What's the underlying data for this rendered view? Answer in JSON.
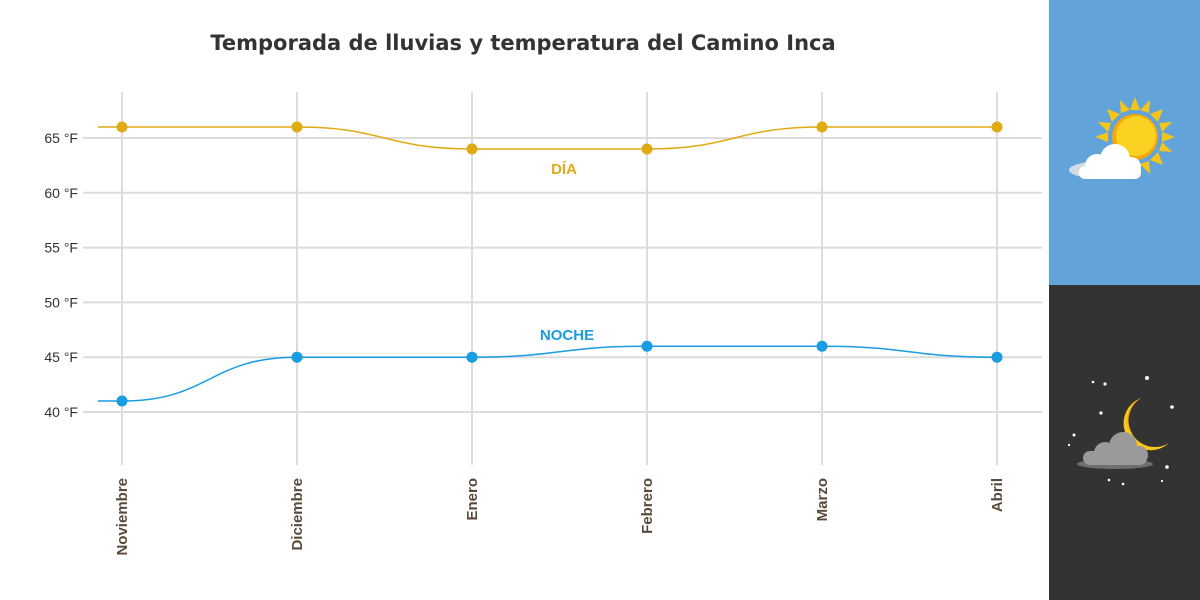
{
  "chart_data": {
    "type": "line",
    "title": "Temporada de lluvias y temperatura del Camino Inca",
    "categories": [
      "Noviembre",
      "Diciembre",
      "Enero",
      "Febrero",
      "Marzo",
      "Abril"
    ],
    "yticks": [
      "40 °F",
      "45 °F",
      "50 °F",
      "55 °F",
      "60 °F",
      "65 °F"
    ],
    "ylim": [
      35,
      69
    ],
    "grid": true,
    "series": [
      {
        "name": "DÍA",
        "values": [
          66,
          66,
          64,
          64,
          66,
          66
        ],
        "color": "#e0aa14"
      },
      {
        "name": "NOCHE",
        "values": [
          41,
          45,
          45,
          46,
          46,
          45
        ],
        "color": "#1a9ce0"
      }
    ]
  },
  "panels": {
    "day": {
      "background": "#62a3da",
      "icon": "sun-cloud-icon"
    },
    "night": {
      "background": "#333333",
      "icon": "moon-cloud-icon"
    }
  }
}
